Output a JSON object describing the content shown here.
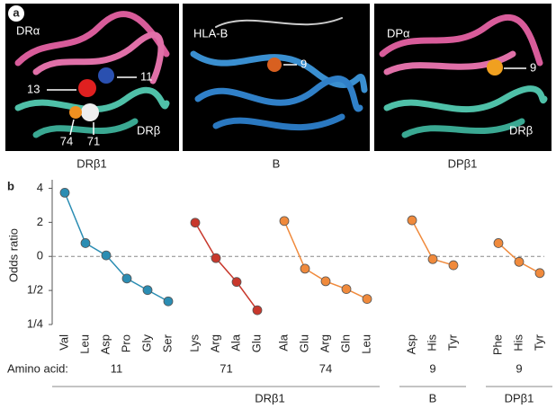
{
  "panel_a": {
    "label": "a",
    "images": [
      {
        "caption": "DRβ1",
        "labels": [
          "DRα",
          "11",
          "13",
          "74",
          "71",
          "DRβ"
        ]
      },
      {
        "caption": "B",
        "labels": [
          "HLA-B",
          "9"
        ]
      },
      {
        "caption": "DPβ1",
        "labels": [
          "DPα",
          "9",
          "DRβ"
        ]
      }
    ]
  },
  "chart_data": {
    "type": "line",
    "panel_label": "b",
    "y_label": "Odds ratio",
    "x_label": "Amino acid:",
    "ylim": [
      -2,
      2.25
    ],
    "yticks": [
      {
        "value": 2,
        "label": "4"
      },
      {
        "value": 1,
        "label": "2"
      },
      0,
      {
        "value": -1,
        "label": "1/2"
      },
      {
        "value": -2,
        "label": "1/4"
      }
    ],
    "reference_line": 0,
    "groups": [
      {
        "name": "DRβ1",
        "series": [
          {
            "name": "11",
            "color": "#2b8db3",
            "categories": [
              "Val",
              "Leu",
              "Asp",
              "Pro",
              "Gly",
              "Ser"
            ],
            "values": [
              1.87,
              0.39,
              0.03,
              -0.65,
              -0.99,
              -1.32
            ]
          },
          {
            "name": "71",
            "color": "#c8382c",
            "categories": [
              "Lys",
              "Arg",
              "Ala",
              "Glu"
            ],
            "values": [
              0.99,
              -0.05,
              -0.75,
              -1.58
            ]
          },
          {
            "name": "74",
            "color": "#f08a3c",
            "categories": [
              "Ala",
              "Glu",
              "Arg",
              "Gln",
              "Leu"
            ],
            "values": [
              1.04,
              -0.36,
              -0.73,
              -0.96,
              -1.25
            ]
          }
        ]
      },
      {
        "name": "B",
        "series": [
          {
            "name": "9",
            "color": "#f08a3c",
            "categories": [
              "Asp",
              "His",
              "Tyr"
            ],
            "values": [
              1.06,
              -0.08,
              -0.26
            ]
          }
        ]
      },
      {
        "name": "DPβ1",
        "series": [
          {
            "name": "9",
            "color": "#f08a3c",
            "categories": [
              "Phe",
              "His",
              "Tyr"
            ],
            "values": [
              0.39,
              -0.16,
              -0.49
            ]
          }
        ]
      }
    ]
  }
}
